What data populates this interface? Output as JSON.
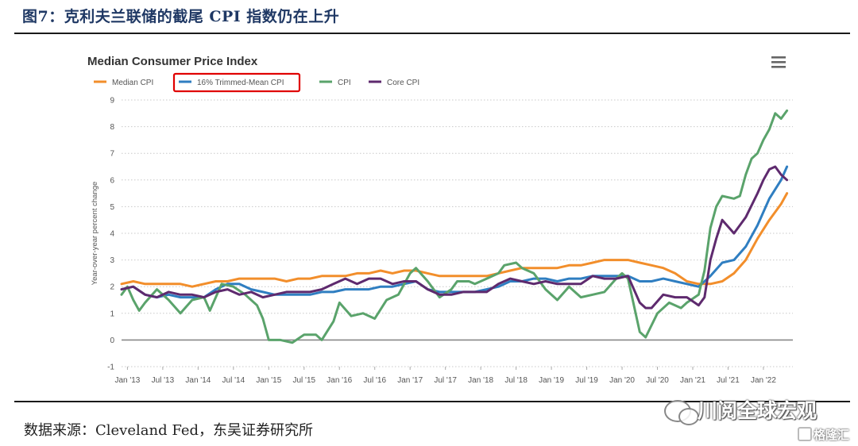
{
  "figure_title": "图7：克利夫兰联储的截尾 CPI 指数仍在上升",
  "source_text": "数据来源：Cleveland Fed，东吴证券研究所",
  "watermark": "川阅全球宏观",
  "logo2": "格隆汇",
  "menu_icon": "hamburger-menu-icon",
  "chart_data": {
    "type": "line",
    "title": "Median Consumer Price Index",
    "ylabel": "Year-over-year percent change",
    "xlabel": "",
    "ylim": [
      -1,
      9
    ],
    "yticks": [
      -1,
      0,
      1,
      2,
      3,
      4,
      5,
      6,
      7,
      8,
      9
    ],
    "xlim": [
      "2012-12",
      "2022-06"
    ],
    "x_tick_labels": [
      "Jan '13",
      "Jul '13",
      "Jan '14",
      "Jul '14",
      "Jan '15",
      "Jul '15",
      "Jan '16",
      "Jul '16",
      "Jan '17",
      "Jul '17",
      "Jan '18",
      "Jul '18",
      "Jan '19",
      "Jul '19",
      "Jan '20",
      "Jul '20",
      "Jan '21",
      "Jul '21",
      "Jan '22"
    ],
    "x_tick_values": [
      "2013-01",
      "2013-07",
      "2014-01",
      "2014-07",
      "2015-01",
      "2015-07",
      "2016-01",
      "2016-07",
      "2017-01",
      "2017-07",
      "2018-01",
      "2018-07",
      "2019-01",
      "2019-07",
      "2020-01",
      "2020-07",
      "2021-01",
      "2021-07",
      "2022-01"
    ],
    "grid": "horizontal dotted",
    "legend_position": "top-left",
    "highlighted_legend": "16% Trimmed-Mean CPI",
    "highlight_color": "#e00000",
    "series": [
      {
        "name": "Median CPI",
        "color": "#f28e2b",
        "points": [
          [
            "2012-12",
            2.1
          ],
          [
            "2013-02",
            2.2
          ],
          [
            "2013-04",
            2.1
          ],
          [
            "2013-06",
            2.1
          ],
          [
            "2013-08",
            2.1
          ],
          [
            "2013-10",
            2.1
          ],
          [
            "2013-12",
            2.0
          ],
          [
            "2014-02",
            2.1
          ],
          [
            "2014-04",
            2.2
          ],
          [
            "2014-06",
            2.2
          ],
          [
            "2014-08",
            2.3
          ],
          [
            "2014-10",
            2.3
          ],
          [
            "2014-12",
            2.3
          ],
          [
            "2015-02",
            2.3
          ],
          [
            "2015-04",
            2.2
          ],
          [
            "2015-06",
            2.3
          ],
          [
            "2015-08",
            2.3
          ],
          [
            "2015-10",
            2.4
          ],
          [
            "2015-12",
            2.4
          ],
          [
            "2016-02",
            2.4
          ],
          [
            "2016-04",
            2.5
          ],
          [
            "2016-06",
            2.5
          ],
          [
            "2016-08",
            2.6
          ],
          [
            "2016-10",
            2.5
          ],
          [
            "2016-12",
            2.6
          ],
          [
            "2017-02",
            2.6
          ],
          [
            "2017-04",
            2.5
          ],
          [
            "2017-06",
            2.4
          ],
          [
            "2017-08",
            2.4
          ],
          [
            "2017-10",
            2.4
          ],
          [
            "2017-12",
            2.4
          ],
          [
            "2018-02",
            2.4
          ],
          [
            "2018-04",
            2.5
          ],
          [
            "2018-06",
            2.6
          ],
          [
            "2018-08",
            2.7
          ],
          [
            "2018-10",
            2.7
          ],
          [
            "2018-12",
            2.7
          ],
          [
            "2019-02",
            2.7
          ],
          [
            "2019-04",
            2.8
          ],
          [
            "2019-06",
            2.8
          ],
          [
            "2019-08",
            2.9
          ],
          [
            "2019-10",
            3.0
          ],
          [
            "2019-12",
            3.0
          ],
          [
            "2020-02",
            3.0
          ],
          [
            "2020-04",
            2.9
          ],
          [
            "2020-06",
            2.8
          ],
          [
            "2020-08",
            2.7
          ],
          [
            "2020-10",
            2.5
          ],
          [
            "2020-12",
            2.2
          ],
          [
            "2021-02",
            2.1
          ],
          [
            "2021-04",
            2.1
          ],
          [
            "2021-06",
            2.2
          ],
          [
            "2021-08",
            2.5
          ],
          [
            "2021-10",
            3.0
          ],
          [
            "2021-12",
            3.8
          ],
          [
            "2022-02",
            4.5
          ],
          [
            "2022-04",
            5.1
          ],
          [
            "2022-05",
            5.5
          ]
        ]
      },
      {
        "name": "16% Trimmed-Mean CPI",
        "color": "#2f7ec1",
        "points": [
          [
            "2012-12",
            1.9
          ],
          [
            "2013-02",
            2.0
          ],
          [
            "2013-04",
            1.7
          ],
          [
            "2013-06",
            1.6
          ],
          [
            "2013-08",
            1.7
          ],
          [
            "2013-10",
            1.6
          ],
          [
            "2013-12",
            1.6
          ],
          [
            "2014-02",
            1.6
          ],
          [
            "2014-04",
            1.9
          ],
          [
            "2014-06",
            2.1
          ],
          [
            "2014-08",
            2.1
          ],
          [
            "2014-10",
            1.9
          ],
          [
            "2014-12",
            1.8
          ],
          [
            "2015-02",
            1.7
          ],
          [
            "2015-04",
            1.7
          ],
          [
            "2015-06",
            1.7
          ],
          [
            "2015-08",
            1.7
          ],
          [
            "2015-10",
            1.8
          ],
          [
            "2015-12",
            1.8
          ],
          [
            "2016-02",
            1.9
          ],
          [
            "2016-04",
            1.9
          ],
          [
            "2016-06",
            1.9
          ],
          [
            "2016-08",
            2.0
          ],
          [
            "2016-10",
            2.0
          ],
          [
            "2016-12",
            2.1
          ],
          [
            "2017-02",
            2.2
          ],
          [
            "2017-04",
            1.9
          ],
          [
            "2017-06",
            1.8
          ],
          [
            "2017-08",
            1.8
          ],
          [
            "2017-10",
            1.8
          ],
          [
            "2017-12",
            1.8
          ],
          [
            "2018-02",
            1.9
          ],
          [
            "2018-04",
            2.0
          ],
          [
            "2018-06",
            2.2
          ],
          [
            "2018-08",
            2.2
          ],
          [
            "2018-10",
            2.3
          ],
          [
            "2018-12",
            2.3
          ],
          [
            "2019-02",
            2.2
          ],
          [
            "2019-04",
            2.3
          ],
          [
            "2019-06",
            2.3
          ],
          [
            "2019-08",
            2.4
          ],
          [
            "2019-10",
            2.4
          ],
          [
            "2019-12",
            2.4
          ],
          [
            "2020-02",
            2.4
          ],
          [
            "2020-04",
            2.2
          ],
          [
            "2020-06",
            2.2
          ],
          [
            "2020-08",
            2.3
          ],
          [
            "2020-10",
            2.2
          ],
          [
            "2020-12",
            2.1
          ],
          [
            "2021-02",
            2.0
          ],
          [
            "2021-04",
            2.4
          ],
          [
            "2021-06",
            2.9
          ],
          [
            "2021-08",
            3.0
          ],
          [
            "2021-10",
            3.5
          ],
          [
            "2021-12",
            4.3
          ],
          [
            "2022-02",
            5.3
          ],
          [
            "2022-04",
            6.0
          ],
          [
            "2022-05",
            6.5
          ]
        ]
      },
      {
        "name": "CPI",
        "color": "#5aa36b",
        "points": [
          [
            "2012-12",
            1.7
          ],
          [
            "2013-01",
            2.0
          ],
          [
            "2013-02",
            1.5
          ],
          [
            "2013-03",
            1.1
          ],
          [
            "2013-04",
            1.4
          ],
          [
            "2013-06",
            1.9
          ],
          [
            "2013-08",
            1.5
          ],
          [
            "2013-10",
            1.0
          ],
          [
            "2013-12",
            1.5
          ],
          [
            "2014-02",
            1.6
          ],
          [
            "2014-03",
            1.1
          ],
          [
            "2014-05",
            2.1
          ],
          [
            "2014-07",
            2.0
          ],
          [
            "2014-09",
            1.7
          ],
          [
            "2014-11",
            1.3
          ],
          [
            "2014-12",
            0.8
          ],
          [
            "2015-01",
            0.0
          ],
          [
            "2015-03",
            0.0
          ],
          [
            "2015-05",
            -0.1
          ],
          [
            "2015-07",
            0.2
          ],
          [
            "2015-09",
            0.2
          ],
          [
            "2015-10",
            0.0
          ],
          [
            "2015-12",
            0.7
          ],
          [
            "2016-01",
            1.4
          ],
          [
            "2016-03",
            0.9
          ],
          [
            "2016-05",
            1.0
          ],
          [
            "2016-07",
            0.8
          ],
          [
            "2016-09",
            1.5
          ],
          [
            "2016-11",
            1.7
          ],
          [
            "2017-01",
            2.5
          ],
          [
            "2017-02",
            2.7
          ],
          [
            "2017-04",
            2.2
          ],
          [
            "2017-06",
            1.6
          ],
          [
            "2017-08",
            1.9
          ],
          [
            "2017-09",
            2.2
          ],
          [
            "2017-11",
            2.2
          ],
          [
            "2017-12",
            2.1
          ],
          [
            "2018-02",
            2.3
          ],
          [
            "2018-04",
            2.5
          ],
          [
            "2018-05",
            2.8
          ],
          [
            "2018-07",
            2.9
          ],
          [
            "2018-08",
            2.7
          ],
          [
            "2018-10",
            2.5
          ],
          [
            "2018-12",
            1.9
          ],
          [
            "2019-02",
            1.5
          ],
          [
            "2019-04",
            2.0
          ],
          [
            "2019-06",
            1.6
          ],
          [
            "2019-08",
            1.7
          ],
          [
            "2019-10",
            1.8
          ],
          [
            "2019-12",
            2.3
          ],
          [
            "2020-01",
            2.5
          ],
          [
            "2020-02",
            2.3
          ],
          [
            "2020-04",
            0.3
          ],
          [
            "2020-05",
            0.1
          ],
          [
            "2020-07",
            1.0
          ],
          [
            "2020-09",
            1.4
          ],
          [
            "2020-11",
            1.2
          ],
          [
            "2020-12",
            1.4
          ],
          [
            "2021-02",
            1.7
          ],
          [
            "2021-03",
            2.6
          ],
          [
            "2021-04",
            4.2
          ],
          [
            "2021-05",
            5.0
          ],
          [
            "2021-06",
            5.4
          ],
          [
            "2021-08",
            5.3
          ],
          [
            "2021-09",
            5.4
          ],
          [
            "2021-10",
            6.2
          ],
          [
            "2021-11",
            6.8
          ],
          [
            "2021-12",
            7.0
          ],
          [
            "2022-01",
            7.5
          ],
          [
            "2022-02",
            7.9
          ],
          [
            "2022-03",
            8.5
          ],
          [
            "2022-04",
            8.3
          ],
          [
            "2022-05",
            8.6
          ]
        ]
      },
      {
        "name": "Core CPI",
        "color": "#5e2a6e",
        "points": [
          [
            "2012-12",
            1.9
          ],
          [
            "2013-02",
            2.0
          ],
          [
            "2013-04",
            1.7
          ],
          [
            "2013-06",
            1.6
          ],
          [
            "2013-08",
            1.8
          ],
          [
            "2013-10",
            1.7
          ],
          [
            "2013-12",
            1.7
          ],
          [
            "2014-02",
            1.6
          ],
          [
            "2014-04",
            1.8
          ],
          [
            "2014-06",
            1.9
          ],
          [
            "2014-08",
            1.7
          ],
          [
            "2014-10",
            1.8
          ],
          [
            "2014-12",
            1.6
          ],
          [
            "2015-02",
            1.7
          ],
          [
            "2015-04",
            1.8
          ],
          [
            "2015-06",
            1.8
          ],
          [
            "2015-08",
            1.8
          ],
          [
            "2015-10",
            1.9
          ],
          [
            "2015-12",
            2.1
          ],
          [
            "2016-02",
            2.3
          ],
          [
            "2016-04",
            2.1
          ],
          [
            "2016-06",
            2.3
          ],
          [
            "2016-08",
            2.3
          ],
          [
            "2016-10",
            2.1
          ],
          [
            "2016-12",
            2.2
          ],
          [
            "2017-02",
            2.2
          ],
          [
            "2017-04",
            1.9
          ],
          [
            "2017-06",
            1.7
          ],
          [
            "2017-08",
            1.7
          ],
          [
            "2017-10",
            1.8
          ],
          [
            "2017-12",
            1.8
          ],
          [
            "2018-02",
            1.8
          ],
          [
            "2018-04",
            2.1
          ],
          [
            "2018-06",
            2.3
          ],
          [
            "2018-08",
            2.2
          ],
          [
            "2018-10",
            2.1
          ],
          [
            "2018-12",
            2.2
          ],
          [
            "2019-02",
            2.1
          ],
          [
            "2019-04",
            2.1
          ],
          [
            "2019-06",
            2.1
          ],
          [
            "2019-08",
            2.4
          ],
          [
            "2019-10",
            2.3
          ],
          [
            "2019-12",
            2.3
          ],
          [
            "2020-02",
            2.4
          ],
          [
            "2020-04",
            1.4
          ],
          [
            "2020-05",
            1.2
          ],
          [
            "2020-06",
            1.2
          ],
          [
            "2020-08",
            1.7
          ],
          [
            "2020-10",
            1.6
          ],
          [
            "2020-12",
            1.6
          ],
          [
            "2021-02",
            1.3
          ],
          [
            "2021-03",
            1.6
          ],
          [
            "2021-04",
            3.0
          ],
          [
            "2021-05",
            3.8
          ],
          [
            "2021-06",
            4.5
          ],
          [
            "2021-08",
            4.0
          ],
          [
            "2021-10",
            4.6
          ],
          [
            "2021-12",
            5.5
          ],
          [
            "2022-01",
            6.0
          ],
          [
            "2022-02",
            6.4
          ],
          [
            "2022-03",
            6.5
          ],
          [
            "2022-04",
            6.2
          ],
          [
            "2022-05",
            6.0
          ]
        ]
      }
    ]
  }
}
